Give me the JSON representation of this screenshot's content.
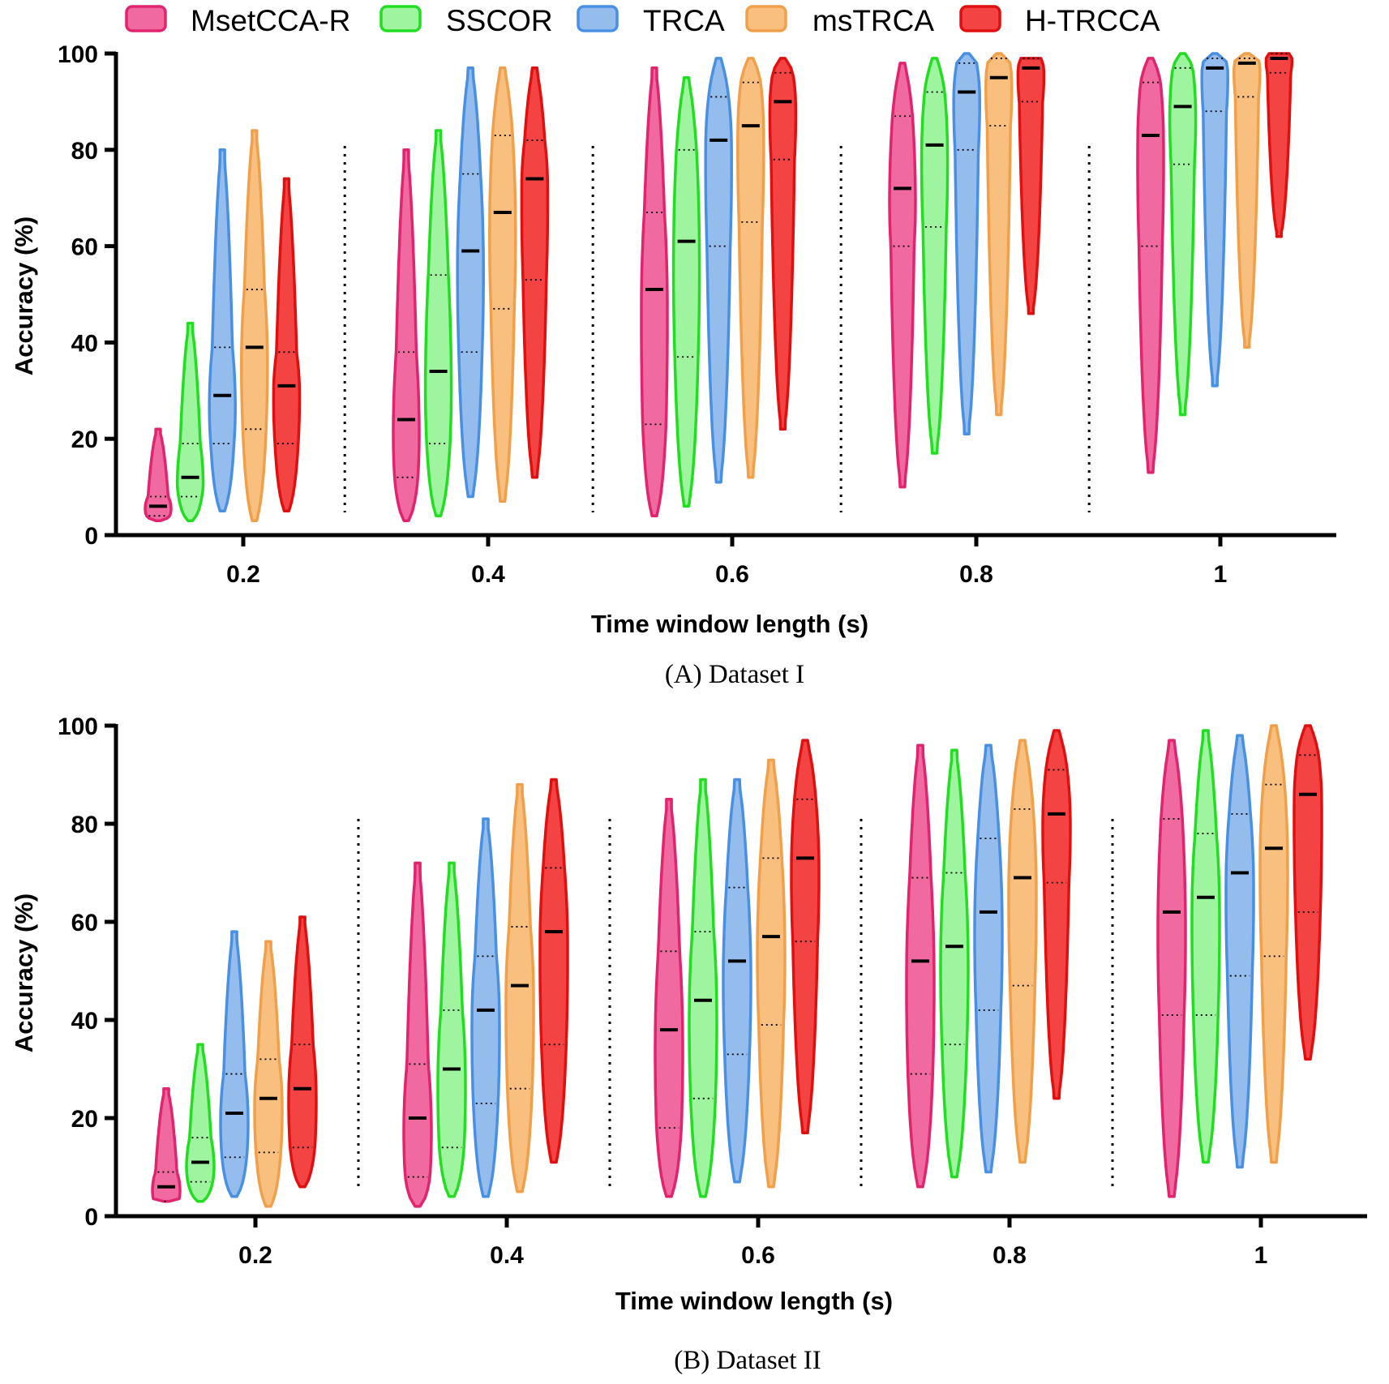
{
  "legend": [
    {
      "name": "MsetCCA-R",
      "fill": "#f06aa0",
      "stroke": "#e0246e"
    },
    {
      "name": "SSCOR",
      "fill": "#9ff59f",
      "stroke": "#22dd22"
    },
    {
      "name": "TRCA",
      "fill": "#94bdee",
      "stroke": "#4a90e2"
    },
    {
      "name": "msTRCA",
      "fill": "#f9bf7e",
      "stroke": "#f0a04b"
    },
    {
      "name": "H-TRCCA",
      "fill": "#f34343",
      "stroke": "#e01010"
    }
  ],
  "chart_data": [
    {
      "type": "violin",
      "caption": "(A) Dataset I",
      "xlabel": "Time window length (s)",
      "ylabel": "Accuracy (%)",
      "ylim": [
        0,
        100
      ],
      "yticks": [
        "0",
        "20",
        "40",
        "60",
        "80",
        "100"
      ],
      "categories": [
        "0.2",
        "0.4",
        "0.6",
        "0.8",
        "1"
      ],
      "series": [
        {
          "name": "MsetCCA-R",
          "min": [
            3,
            3,
            4,
            10,
            13
          ],
          "max": [
            22,
            80,
            97,
            98,
            99
          ],
          "median": [
            6,
            24,
            51,
            72,
            83
          ],
          "q1": [
            4,
            12,
            23,
            60,
            60
          ],
          "q3": [
            8,
            38,
            67,
            87,
            94
          ]
        },
        {
          "name": "SSCOR",
          "min": [
            3,
            4,
            6,
            17,
            25
          ],
          "max": [
            44,
            84,
            95,
            99,
            100
          ],
          "median": [
            12,
            34,
            61,
            81,
            89
          ],
          "q1": [
            8,
            19,
            37,
            64,
            77
          ],
          "q3": [
            19,
            54,
            80,
            92,
            97
          ]
        },
        {
          "name": "TRCA",
          "min": [
            5,
            8,
            11,
            21,
            31
          ],
          "max": [
            80,
            97,
            99,
            100,
            100
          ],
          "median": [
            29,
            59,
            82,
            92,
            97
          ],
          "q1": [
            19,
            38,
            60,
            80,
            88
          ],
          "q3": [
            39,
            75,
            91,
            98,
            99
          ]
        },
        {
          "name": "msTRCA",
          "min": [
            3,
            7,
            12,
            25,
            39
          ],
          "max": [
            84,
            97,
            99,
            100,
            100
          ],
          "median": [
            39,
            67,
            85,
            95,
            98
          ],
          "q1": [
            22,
            47,
            65,
            85,
            91
          ],
          "q3": [
            51,
            83,
            94,
            99,
            99
          ]
        },
        {
          "name": "H-TRCCA",
          "min": [
            5,
            12,
            22,
            46,
            62
          ],
          "max": [
            74,
            97,
            99,
            99,
            100
          ],
          "median": [
            31,
            74,
            90,
            97,
            99
          ],
          "q1": [
            19,
            53,
            78,
            90,
            96
          ],
          "q3": [
            38,
            82,
            96,
            99,
            100
          ]
        }
      ]
    },
    {
      "type": "violin",
      "caption": "(B) Dataset II",
      "xlabel": "Time window length (s)",
      "ylabel": "Accuracy (%)",
      "ylim": [
        0,
        100
      ],
      "yticks": [
        "0",
        "20",
        "40",
        "60",
        "80",
        "100"
      ],
      "categories": [
        "0.2",
        "0.4",
        "0.6",
        "0.8",
        "1"
      ],
      "series": [
        {
          "name": "MsetCCA-R",
          "min": [
            3,
            2,
            4,
            6,
            4
          ],
          "max": [
            26,
            72,
            85,
            96,
            97
          ],
          "median": [
            6,
            20,
            38,
            52,
            62
          ],
          "q1": [
            3,
            8,
            18,
            29,
            41
          ],
          "q3": [
            9,
            31,
            54,
            69,
            81
          ]
        },
        {
          "name": "SSCOR",
          "min": [
            3,
            4,
            4,
            8,
            11
          ],
          "max": [
            35,
            72,
            89,
            95,
            99
          ],
          "median": [
            11,
            30,
            44,
            55,
            65
          ],
          "q1": [
            7,
            14,
            24,
            35,
            41
          ],
          "q3": [
            16,
            42,
            58,
            70,
            78
          ]
        },
        {
          "name": "TRCA",
          "min": [
            4,
            4,
            7,
            9,
            10
          ],
          "max": [
            58,
            81,
            89,
            96,
            98
          ],
          "median": [
            21,
            42,
            52,
            62,
            70
          ],
          "q1": [
            12,
            23,
            33,
            42,
            49
          ],
          "q3": [
            29,
            53,
            67,
            77,
            82
          ]
        },
        {
          "name": "msTRCA",
          "min": [
            2,
            5,
            6,
            11,
            11
          ],
          "max": [
            56,
            88,
            93,
            97,
            100
          ],
          "median": [
            24,
            47,
            57,
            69,
            75
          ],
          "q1": [
            13,
            26,
            39,
            47,
            53
          ],
          "q3": [
            32,
            59,
            73,
            83,
            88
          ]
        },
        {
          "name": "H-TRCCA",
          "min": [
            6,
            11,
            17,
            24,
            32
          ],
          "max": [
            61,
            89,
            97,
            99,
            100
          ],
          "median": [
            26,
            58,
            73,
            82,
            86
          ],
          "q1": [
            14,
            35,
            56,
            68,
            62
          ],
          "q3": [
            35,
            71,
            85,
            91,
            94
          ]
        }
      ]
    }
  ]
}
